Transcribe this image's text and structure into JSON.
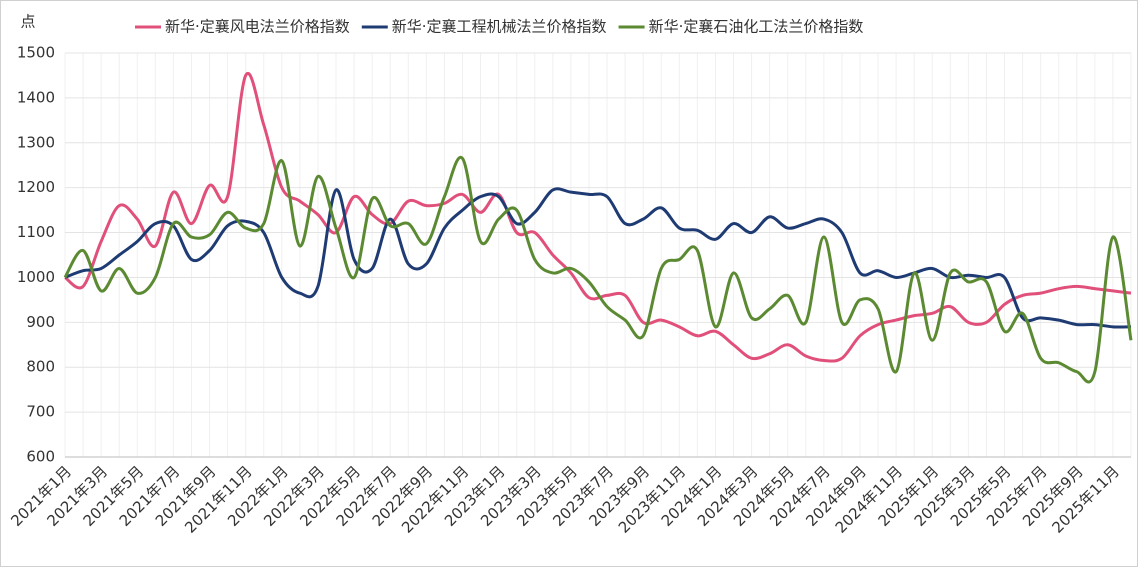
{
  "chart_data": {
    "type": "line",
    "y_label": "点",
    "categories": [
      "2021年1月",
      null,
      "2021年3月",
      null,
      "2021年5月",
      null,
      "2021年7月",
      null,
      "2021年9月",
      null,
      "2021年11月",
      null,
      "2022年1月",
      null,
      "2022年3月",
      null,
      "2022年5月",
      null,
      "2022年7月",
      null,
      "2022年9月",
      null,
      "2022年11月",
      null,
      "2023年1月",
      null,
      "2023年3月",
      null,
      "2023年5月",
      null,
      "2023年7月",
      null,
      "2023年9月",
      null,
      "2023年11月",
      null,
      "2024年1月",
      null,
      "2024年3月",
      null,
      "2024年5月",
      null,
      "2024年7月",
      null,
      "2024年9月",
      null,
      "2024年11月",
      null,
      "2025年1月",
      null,
      "2025年3月",
      null,
      "2025年5月",
      null,
      "2025年7月",
      null,
      "2025年9月",
      null,
      "2025年11月",
      null
    ],
    "series": [
      {
        "name": "新华·定襄风电法兰价格指数",
        "color": "#e0507a",
        "values": [
          1000,
          980,
          1080,
          1160,
          1130,
          1070,
          1190,
          1120,
          1205,
          1180,
          1450,
          1340,
          1200,
          1170,
          1140,
          1100,
          1180,
          1140,
          1120,
          1170,
          1160,
          1165,
          1185,
          1145,
          1185,
          1100,
          1100,
          1050,
          1010,
          955,
          960,
          960,
          900,
          905,
          890,
          870,
          880,
          850,
          820,
          830,
          850,
          825,
          815,
          820,
          870,
          895,
          905,
          915,
          920,
          935,
          900,
          900,
          940,
          960,
          965,
          975,
          980,
          975,
          970,
          965
        ]
      },
      {
        "name": "新华·定襄工程机械法兰价格指数",
        "color": "#1f3b73",
        "values": [
          1000,
          1015,
          1020,
          1050,
          1080,
          1120,
          1115,
          1040,
          1060,
          1115,
          1125,
          1100,
          1000,
          965,
          980,
          1195,
          1040,
          1020,
          1130,
          1030,
          1030,
          1110,
          1150,
          1180,
          1180,
          1120,
          1145,
          1195,
          1190,
          1185,
          1180,
          1120,
          1130,
          1155,
          1110,
          1105,
          1085,
          1120,
          1100,
          1135,
          1110,
          1120,
          1130,
          1100,
          1010,
          1015,
          1000,
          1010,
          1020,
          1000,
          1005,
          1000,
          1000,
          910,
          910,
          905,
          895,
          895,
          890,
          890
        ]
      },
      {
        "name": "新华·定襄石油化工法兰价格指数",
        "color": "#5b8a32",
        "values": [
          1000,
          1060,
          970,
          1020,
          965,
          1000,
          1120,
          1090,
          1095,
          1145,
          1110,
          1120,
          1260,
          1070,
          1225,
          1110,
          1000,
          1175,
          1115,
          1120,
          1075,
          1180,
          1265,
          1080,
          1130,
          1150,
          1040,
          1010,
          1020,
          990,
          935,
          905,
          870,
          1020,
          1040,
          1060,
          890,
          1010,
          910,
          930,
          960,
          900,
          1090,
          900,
          950,
          930,
          790,
          1010,
          860,
          1010,
          990,
          990,
          880,
          920,
          820,
          810,
          790,
          790,
          1090,
          860
        ]
      }
    ],
    "ylim": [
      600,
      1500
    ],
    "yticks": [
      600,
      700,
      800,
      900,
      1000,
      1100,
      1200,
      1300,
      1400,
      1500
    ],
    "grid": true
  }
}
